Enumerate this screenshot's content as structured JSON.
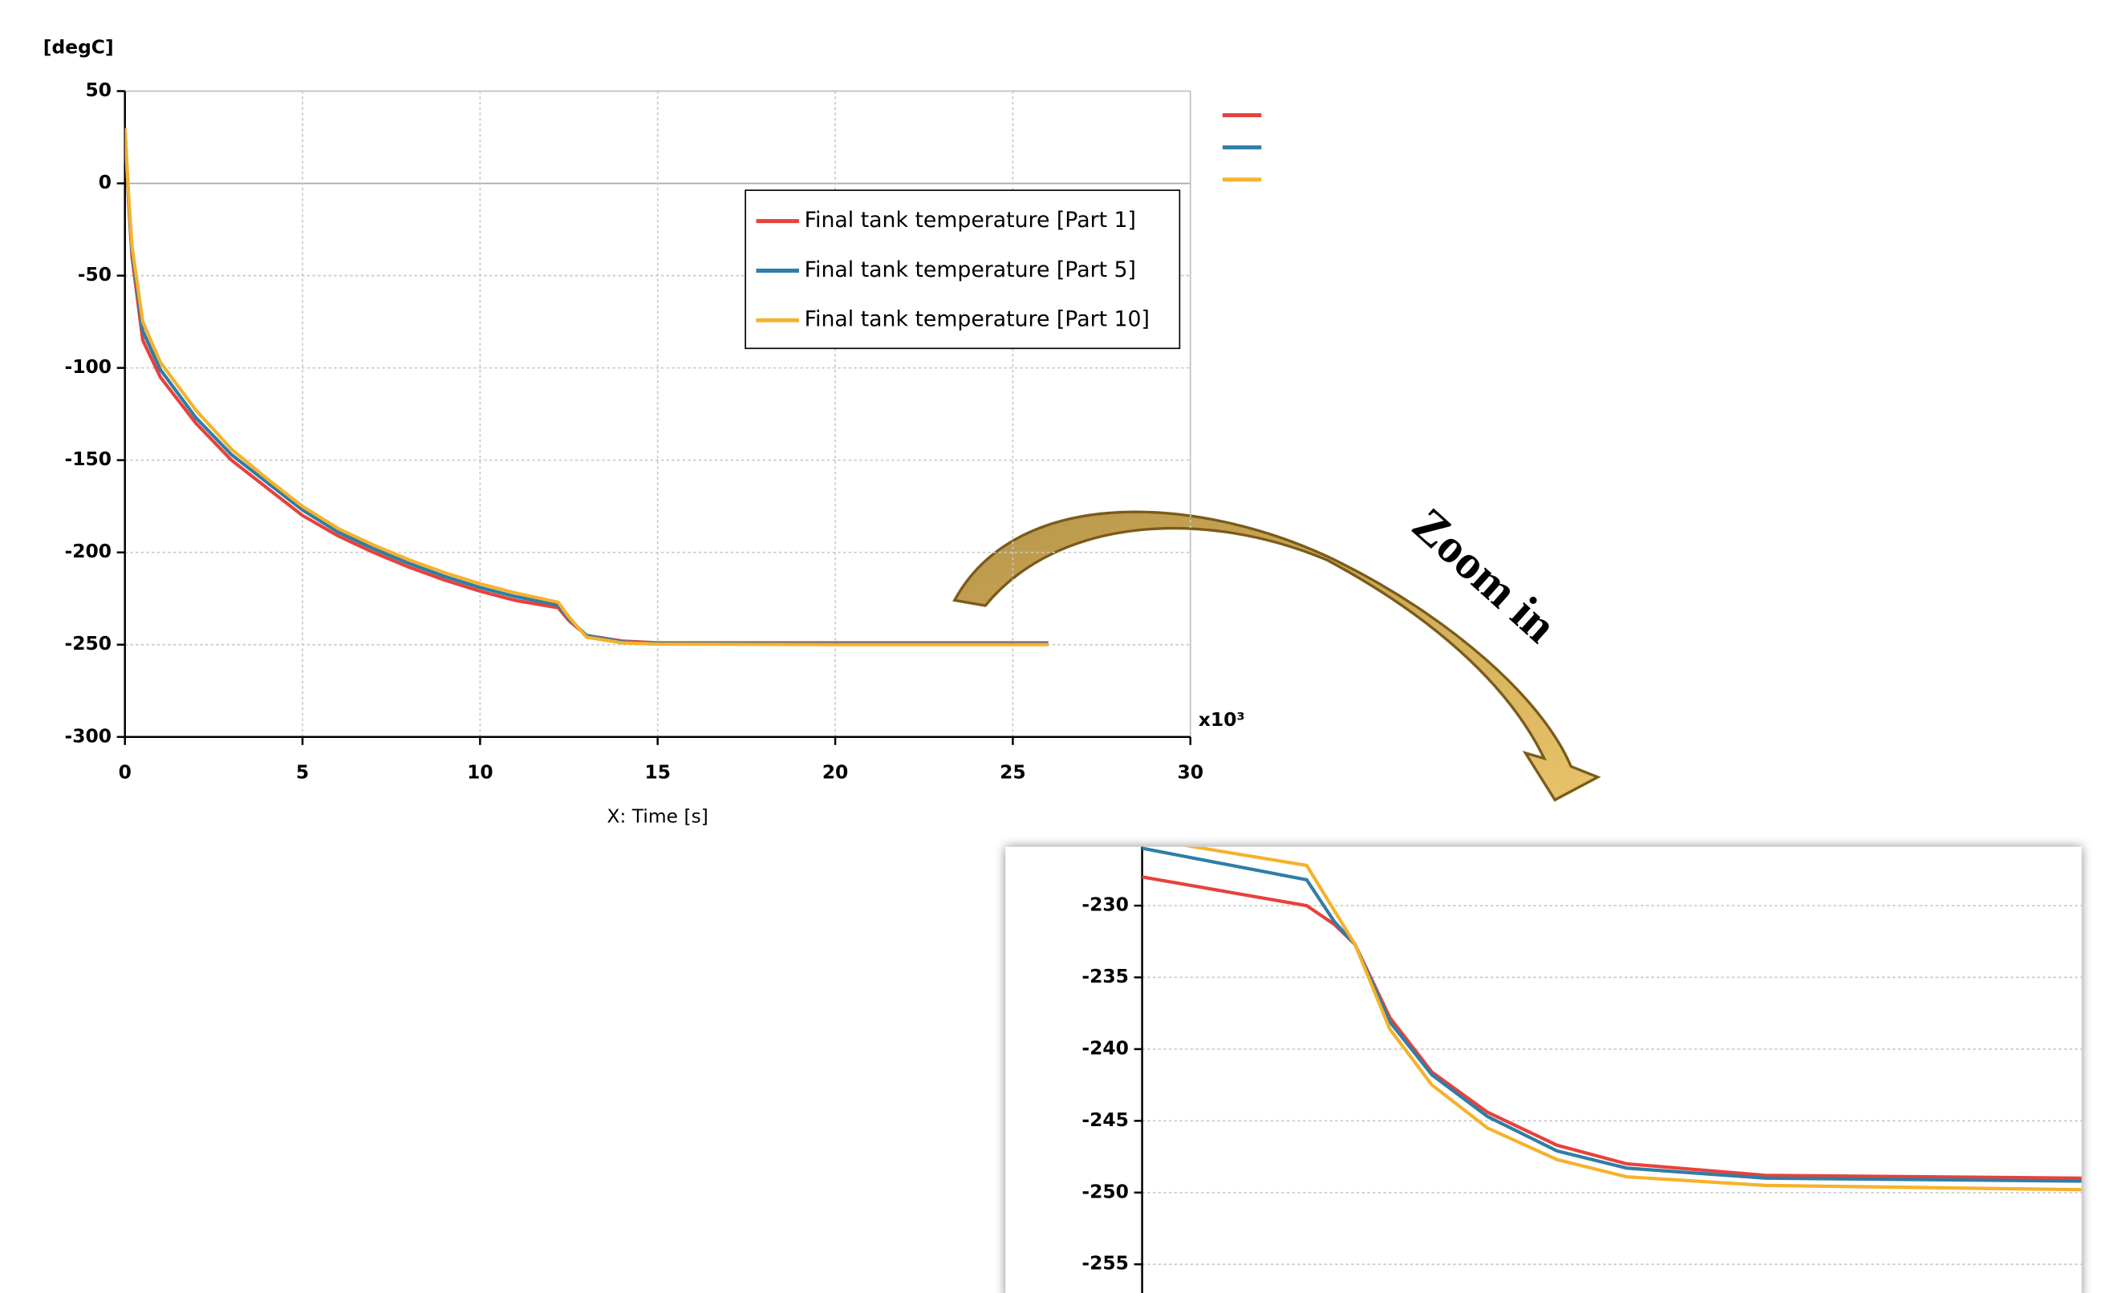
{
  "chart_data": [
    {
      "type": "line",
      "y_unit_label": "[degC]",
      "xlabel": "X: Time [s]",
      "x_multiplier_label": "x10³",
      "xlim": [
        0,
        30
      ],
      "xticks": [
        0,
        5,
        10,
        15,
        20,
        25,
        30
      ],
      "ylim": [
        -300,
        50
      ],
      "yticks": [
        -300,
        -250,
        -200,
        -150,
        -100,
        -50,
        0,
        50
      ],
      "grid": true,
      "legend": "upper right",
      "series": [
        {
          "name": "Final tank temperature [Part 1]",
          "color": "#e8413c",
          "x": [
            0,
            0.1,
            0.2,
            0.5,
            1,
            2,
            3,
            4,
            5,
            6,
            7,
            8,
            9,
            10,
            11,
            12.2,
            12.5,
            13,
            14,
            15,
            20,
            26
          ],
          "values": [
            30,
            -10,
            -40,
            -85,
            -105,
            -130,
            -150,
            -165,
            -180,
            -191,
            -200,
            -208,
            -215,
            -221,
            -226,
            -230,
            -237,
            -245,
            -248,
            -249,
            -249,
            -249
          ]
        },
        {
          "name": "Final tank temperature [Part 5]",
          "color": "#2e7ea6",
          "x": [
            0,
            0.1,
            0.2,
            0.5,
            1,
            2,
            3,
            4,
            5,
            6,
            7,
            8,
            9,
            10,
            11,
            12.2,
            12.5,
            13,
            14,
            15,
            20,
            26
          ],
          "values": [
            30,
            -8,
            -37,
            -80,
            -101,
            -127,
            -147,
            -162,
            -177,
            -189,
            -198,
            -206,
            -213,
            -219,
            -224,
            -228.5,
            -236,
            -245,
            -248.5,
            -249.3,
            -249.5,
            -249.5
          ]
        },
        {
          "name": "Final tank temperature [Part 10]",
          "color": "#f5b22d",
          "x": [
            0,
            0.1,
            0.2,
            0.5,
            1,
            2,
            3,
            4,
            5,
            6,
            7,
            8,
            9,
            10,
            11,
            12.2,
            12.5,
            13,
            14,
            15,
            20,
            26
          ],
          "values": [
            30,
            -6,
            -34,
            -75,
            -97,
            -123,
            -144,
            -160,
            -175,
            -187,
            -196,
            -204,
            -211,
            -217,
            -222,
            -227,
            -235,
            -246,
            -249,
            -249.7,
            -250,
            -250
          ]
        }
      ]
    },
    {
      "type": "line",
      "annotation": "Zoom in",
      "xlim": [
        9.27,
        26
      ],
      "ylim": [
        -257,
        -225.9
      ],
      "yticks": [
        -255,
        -250,
        -245,
        -240,
        -235,
        -230
      ],
      "grid": true,
      "series": [
        {
          "color": "#e8413c",
          "x": [
            9.27,
            12.2,
            12.69,
            13.06,
            13.68,
            14.43,
            15.42,
            16.66,
            17.9,
            20.37,
            26
          ],
          "values": [
            -228,
            -230,
            -231.3,
            -232.7,
            -237.8,
            -241.6,
            -244.4,
            -246.7,
            -248,
            -248.8,
            -249
          ]
        },
        {
          "color": "#2e7ea6",
          "x": [
            9.27,
            12.2,
            12.69,
            13.06,
            13.68,
            14.43,
            15.42,
            16.66,
            17.9,
            20.37,
            26
          ],
          "values": [
            -226,
            -228.2,
            -231.1,
            -232.7,
            -238.1,
            -241.8,
            -244.7,
            -247.1,
            -248.3,
            -249,
            -249.2
          ]
        },
        {
          "color": "#f5b22d",
          "x": [
            9.27,
            12.2,
            13.06,
            13.68,
            14.43,
            15.42,
            16.66,
            17.9,
            20.37,
            26
          ],
          "values": [
            -225.3,
            -227.2,
            -232.7,
            -238.6,
            -242.5,
            -245.5,
            -247.7,
            -248.9,
            -249.5,
            -249.8
          ]
        }
      ]
    }
  ]
}
